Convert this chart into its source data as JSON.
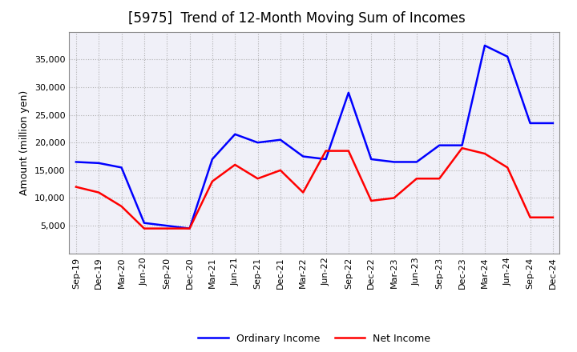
{
  "title": "[5975]  Trend of 12-Month Moving Sum of Incomes",
  "ylabel": "Amount (million yen)",
  "x_labels": [
    "Sep-19",
    "Dec-19",
    "Mar-20",
    "Jun-20",
    "Sep-20",
    "Dec-20",
    "Mar-21",
    "Jun-21",
    "Sep-21",
    "Dec-21",
    "Mar-22",
    "Jun-22",
    "Sep-22",
    "Dec-22",
    "Mar-23",
    "Jun-23",
    "Sep-23",
    "Dec-23",
    "Mar-24",
    "Jun-24",
    "Sep-24",
    "Dec-24"
  ],
  "ordinary_income": [
    16500,
    16300,
    15500,
    5500,
    5000,
    4500,
    17000,
    21500,
    20000,
    20500,
    17500,
    17000,
    29000,
    17000,
    16500,
    16500,
    19500,
    19500,
    37500,
    35500,
    23500,
    23500
  ],
  "net_income": [
    12000,
    11000,
    8500,
    4500,
    4500,
    4500,
    13000,
    16000,
    13500,
    15000,
    11000,
    18500,
    18500,
    9500,
    10000,
    13500,
    13500,
    19000,
    18000,
    15500,
    6500,
    6500
  ],
  "ordinary_color": "#0000ff",
  "net_color": "#ff0000",
  "bg_color": "#ffffff",
  "plot_bg_color": "#f0f0f8",
  "grid_color": "#aaaaaa",
  "ylim": [
    0,
    40000
  ],
  "yticks": [
    5000,
    10000,
    15000,
    20000,
    25000,
    30000,
    35000
  ],
  "title_fontsize": 12,
  "label_fontsize": 9,
  "tick_fontsize": 8,
  "legend_fontsize": 9,
  "line_width": 1.8
}
